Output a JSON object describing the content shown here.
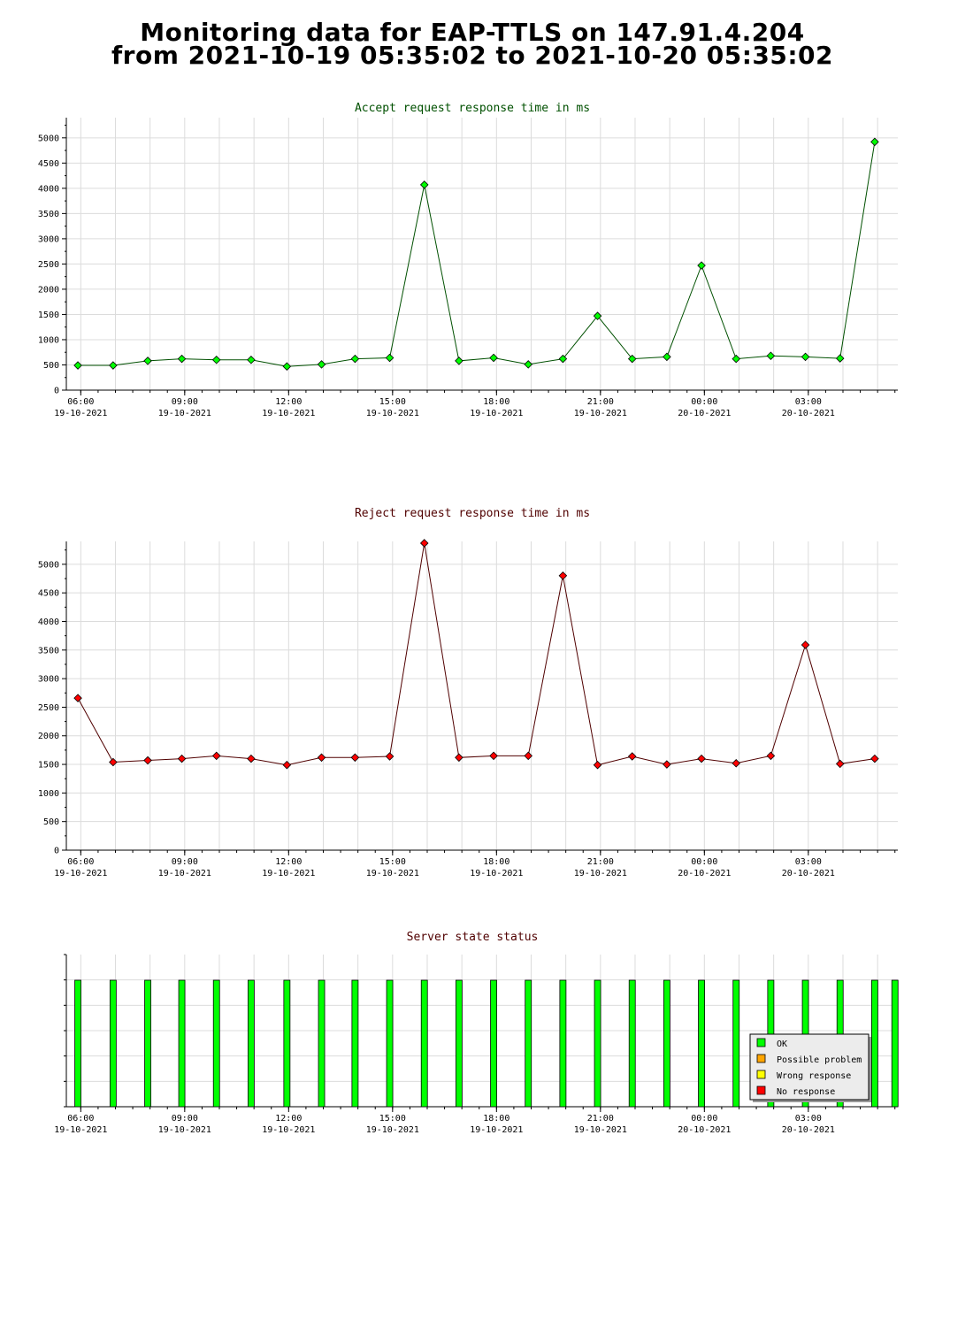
{
  "header": {
    "line1": "Monitoring data for EAP-TTLS on 147.91.4.204",
    "line2": "from 2021-10-19 05:35:02 to 2021-10-20 05:35:02"
  },
  "x_ticks": [
    {
      "time": "06:00",
      "date": "19-10-2021"
    },
    {
      "time": "09:00",
      "date": "19-10-2021"
    },
    {
      "time": "12:00",
      "date": "19-10-2021"
    },
    {
      "time": "15:00",
      "date": "19-10-2021"
    },
    {
      "time": "18:00",
      "date": "19-10-2021"
    },
    {
      "time": "21:00",
      "date": "19-10-2021"
    },
    {
      "time": "00:00",
      "date": "20-10-2021"
    },
    {
      "time": "03:00",
      "date": "20-10-2021"
    }
  ],
  "chart_data": [
    {
      "type": "line",
      "title": "Accept request response time in ms",
      "title_color": "#005000",
      "line_color": "#005000",
      "marker_color": "#00ff00",
      "xlim": [
        "2021-10-19 05:35",
        "2021-10-20 05:35"
      ],
      "ylim": [
        0,
        5400
      ],
      "yticks": [
        0,
        500,
        1000,
        1500,
        2000,
        2500,
        3000,
        3500,
        4000,
        4500,
        5000
      ],
      "x": [
        "2021-10-19 05:55",
        "2021-10-19 06:56",
        "2021-10-19 07:56",
        "2021-10-19 08:55",
        "2021-10-19 09:55",
        "2021-10-19 10:55",
        "2021-10-19 11:57",
        "2021-10-19 12:57",
        "2021-10-19 13:55",
        "2021-10-19 14:55",
        "2021-10-19 15:55",
        "2021-10-19 16:55",
        "2021-10-19 17:55",
        "2021-10-19 18:55",
        "2021-10-19 19:55",
        "2021-10-19 20:55",
        "2021-10-19 21:55",
        "2021-10-19 22:55",
        "2021-10-19 23:55",
        "2021-10-20 00:55",
        "2021-10-20 01:55",
        "2021-10-20 02:55",
        "2021-10-20 03:55",
        "2021-10-20 04:55"
      ],
      "y": [
        490,
        490,
        580,
        620,
        600,
        600,
        470,
        510,
        620,
        640,
        4070,
        580,
        640,
        510,
        620,
        1470,
        620,
        660,
        2470,
        620,
        680,
        660,
        630,
        4920
      ]
    },
    {
      "type": "line",
      "title": "Reject request response time in ms",
      "title_color": "#500000",
      "line_color": "#500000",
      "marker_color": "#ff0000",
      "xlim": [
        "2021-10-19 05:35",
        "2021-10-20 05:35"
      ],
      "ylim": [
        0,
        5400
      ],
      "yticks": [
        0,
        500,
        1000,
        1500,
        2000,
        2500,
        3000,
        3500,
        4000,
        4500,
        5000
      ],
      "x": [
        "2021-10-19 05:55",
        "2021-10-19 06:56",
        "2021-10-19 07:56",
        "2021-10-19 08:55",
        "2021-10-19 09:55",
        "2021-10-19 10:55",
        "2021-10-19 11:57",
        "2021-10-19 12:57",
        "2021-10-19 13:55",
        "2021-10-19 14:55",
        "2021-10-19 15:55",
        "2021-10-19 16:55",
        "2021-10-19 17:55",
        "2021-10-19 18:55",
        "2021-10-19 19:55",
        "2021-10-19 20:55",
        "2021-10-19 21:55",
        "2021-10-19 22:55",
        "2021-10-19 23:55",
        "2021-10-20 00:55",
        "2021-10-20 01:55",
        "2021-10-20 02:55",
        "2021-10-20 03:55",
        "2021-10-20 04:55"
      ],
      "y": [
        2660,
        1540,
        1570,
        1600,
        1650,
        1600,
        1490,
        1620,
        1620,
        1640,
        5370,
        1620,
        1650,
        1650,
        4800,
        1490,
        1640,
        1500,
        1600,
        1520,
        1650,
        3590,
        1510,
        1600
      ]
    },
    {
      "type": "bar",
      "title": "Server state status",
      "title_color": "#500000",
      "xlim": [
        "2021-10-19 05:35",
        "2021-10-20 05:35"
      ],
      "x": [
        "2021-10-19 05:55",
        "2021-10-19 06:56",
        "2021-10-19 07:56",
        "2021-10-19 08:55",
        "2021-10-19 09:55",
        "2021-10-19 10:55",
        "2021-10-19 11:57",
        "2021-10-19 12:57",
        "2021-10-19 13:55",
        "2021-10-19 14:55",
        "2021-10-19 15:55",
        "2021-10-19 16:55",
        "2021-10-19 17:55",
        "2021-10-19 18:55",
        "2021-10-19 19:55",
        "2021-10-19 20:55",
        "2021-10-19 21:55",
        "2021-10-19 22:55",
        "2021-10-19 23:55",
        "2021-10-20 00:55",
        "2021-10-20 01:55",
        "2021-10-20 02:55",
        "2021-10-20 03:55",
        "2021-10-20 04:55",
        "2021-10-20 05:30"
      ],
      "status": [
        "OK",
        "OK",
        "OK",
        "OK",
        "OK",
        "OK",
        "OK",
        "OK",
        "OK",
        "OK",
        "OK",
        "OK",
        "OK",
        "OK",
        "OK",
        "OK",
        "OK",
        "OK",
        "OK",
        "OK",
        "OK",
        "OK",
        "OK",
        "OK",
        "OK"
      ],
      "legend": [
        {
          "label": "OK",
          "color": "#00ff00"
        },
        {
          "label": "Possible problem",
          "color": "#ffa500"
        },
        {
          "label": "Wrong response",
          "color": "#ffff00"
        },
        {
          "label": "No response",
          "color": "#ff0000"
        }
      ],
      "legend_position": "bottom-right"
    }
  ]
}
